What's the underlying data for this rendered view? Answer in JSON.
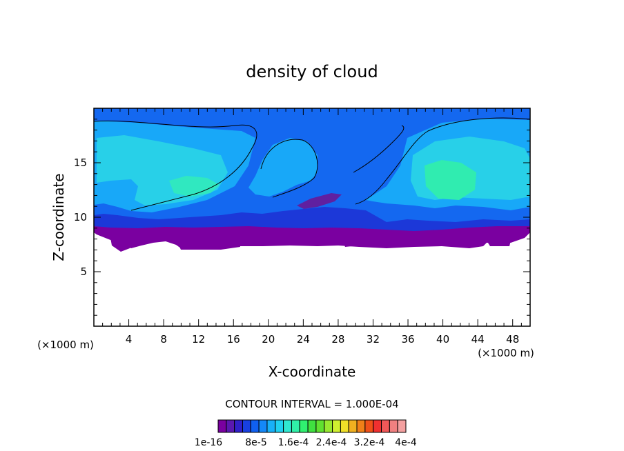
{
  "chart_data": {
    "type": "heatmap",
    "title": "density of cloud",
    "xlabel": "X-coordinate",
    "ylabel": "Z-coordinate",
    "x_unit": "(×1000 m)",
    "z_unit": "(×1000 m)",
    "xlim": [
      0,
      50
    ],
    "ylim": [
      0,
      20
    ],
    "x_ticks": [
      "4",
      "8",
      "12",
      "16",
      "20",
      "24",
      "28",
      "32",
      "36",
      "40",
      "44",
      "48"
    ],
    "y_ticks": [
      "5",
      "10",
      "15"
    ],
    "contour_interval": "CONTOUR INTERVAL = 1.000E-04",
    "colorbar": {
      "labels": [
        "1e-16",
        "8e-5",
        "1.6e-4",
        "2.4e-4",
        "3.2e-4",
        "4e-4"
      ],
      "colors": [
        "#7a00a0",
        "#5a18b0",
        "#3020c8",
        "#1840e0",
        "#1060f0",
        "#1488f8",
        "#18b0f8",
        "#20d0f0",
        "#30e8d0",
        "#30f0a8",
        "#30f070",
        "#40e040",
        "#60e030",
        "#98e830",
        "#d0f030",
        "#f0e028",
        "#f0b020",
        "#f08018",
        "#f05018",
        "#f03030",
        "#f05858",
        "#f08080",
        "#f4a0a0"
      ]
    },
    "ranges": {
      "cloud_top_z": 19.3,
      "cloud_base_z_min": 7.0,
      "cloud_base_z_max": 8.8,
      "max_density_region_x": [
        36,
        44
      ],
      "max_density_region_z": [
        11,
        16
      ]
    }
  }
}
